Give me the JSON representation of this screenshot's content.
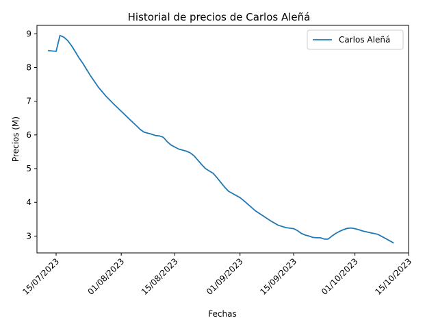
{
  "chart_data": {
    "type": "line",
    "title": "Historial de precios de Carlos Aleñá",
    "xlabel": "Fechas",
    "ylabel": "Precios (M)",
    "x_ticks": [
      "15/07/2023",
      "01/08/2023",
      "15/08/2023",
      "01/09/2023",
      "15/09/2023",
      "01/10/2023",
      "15/10/2023"
    ],
    "y_ticks": [
      "3",
      "4",
      "5",
      "6",
      "7",
      "8",
      "9"
    ],
    "ylim": [
      2.5,
      9.25
    ],
    "xlim": [
      "2023-07-10",
      "2023-10-15"
    ],
    "legend_position": "top-right",
    "series": [
      {
        "name": "Carlos Aleñá",
        "color": "#1f77b4",
        "x": [
          "2023-07-13",
          "2023-07-15",
          "2023-07-16",
          "2023-07-17",
          "2023-07-18",
          "2023-07-19",
          "2023-07-20",
          "2023-07-21",
          "2023-07-22",
          "2023-07-24",
          "2023-07-26",
          "2023-07-28",
          "2023-07-30",
          "2023-08-01",
          "2023-08-03",
          "2023-08-05",
          "2023-08-06",
          "2023-08-07",
          "2023-08-09",
          "2023-08-10",
          "2023-08-11",
          "2023-08-12",
          "2023-08-13",
          "2023-08-14",
          "2023-08-16",
          "2023-08-18",
          "2023-08-19",
          "2023-08-20",
          "2023-08-21",
          "2023-08-22",
          "2023-08-23",
          "2023-08-24",
          "2023-08-25",
          "2023-08-26",
          "2023-08-27",
          "2023-08-28",
          "2023-08-29",
          "2023-09-01",
          "2023-09-02",
          "2023-09-03",
          "2023-09-05",
          "2023-09-07",
          "2023-09-09",
          "2023-09-11",
          "2023-09-13",
          "2023-09-15",
          "2023-09-16",
          "2023-09-17",
          "2023-09-18",
          "2023-09-19",
          "2023-09-20",
          "2023-09-21",
          "2023-09-22",
          "2023-09-23",
          "2023-09-24",
          "2023-09-25",
          "2023-09-26",
          "2023-09-27",
          "2023-09-28",
          "2023-09-29",
          "2023-09-30",
          "2023-10-01",
          "2023-10-02",
          "2023-10-03",
          "2023-10-05",
          "2023-10-07",
          "2023-10-09",
          "2023-10-11"
        ],
        "y": [
          8.5,
          8.48,
          8.95,
          8.9,
          8.8,
          8.65,
          8.47,
          8.28,
          8.12,
          7.75,
          7.42,
          7.15,
          6.92,
          6.7,
          6.48,
          6.27,
          6.16,
          6.08,
          6.02,
          5.98,
          5.97,
          5.93,
          5.8,
          5.7,
          5.58,
          5.52,
          5.47,
          5.38,
          5.25,
          5.12,
          5.0,
          4.93,
          4.86,
          4.73,
          4.59,
          4.45,
          4.33,
          4.14,
          4.05,
          3.95,
          3.75,
          3.6,
          3.45,
          3.32,
          3.25,
          3.22,
          3.16,
          3.08,
          3.03,
          3.0,
          2.96,
          2.95,
          2.95,
          2.91,
          2.91,
          3.0,
          3.08,
          3.14,
          3.19,
          3.23,
          3.24,
          3.22,
          3.19,
          3.15,
          3.1,
          3.05,
          2.93,
          2.8
        ]
      }
    ]
  }
}
